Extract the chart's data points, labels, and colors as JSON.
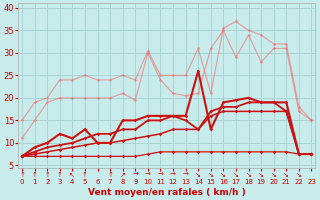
{
  "x": [
    0,
    1,
    2,
    3,
    4,
    5,
    6,
    7,
    8,
    9,
    10,
    11,
    12,
    13,
    14,
    15,
    16,
    17,
    18,
    19,
    20,
    21,
    22,
    23
  ],
  "line_bottom": [
    7,
    7,
    7,
    7,
    7,
    7,
    7,
    7,
    7,
    7,
    7.5,
    8,
    8,
    8,
    8,
    8,
    8,
    8,
    8,
    8,
    8,
    8,
    7.5,
    7.5
  ],
  "line_med1": [
    7,
    7.5,
    8,
    8.5,
    9,
    9.5,
    10,
    10,
    10.5,
    11,
    11.5,
    12,
    13,
    13,
    13,
    16,
    17,
    17,
    17,
    17,
    17,
    17,
    7.5,
    7.5
  ],
  "line_med2": [
    7,
    8,
    9,
    9.5,
    10,
    11,
    12,
    12,
    13,
    13,
    15,
    15,
    16,
    15,
    13,
    17,
    18,
    18,
    19,
    19,
    19,
    17,
    7.5,
    7.5
  ],
  "line_top1": [
    7,
    9,
    10,
    12,
    11,
    13,
    10,
    10,
    15,
    15,
    16,
    16,
    16,
    16,
    26,
    13,
    19,
    19.5,
    20,
    19,
    19,
    19,
    7.5,
    7.5
  ],
  "line_light1": [
    11,
    15,
    19,
    20,
    20,
    20,
    20,
    20,
    21,
    19.5,
    30,
    24,
    21,
    20.5,
    21,
    31,
    35,
    29,
    34,
    28,
    31,
    31,
    17,
    15
  ],
  "line_light2": [
    15,
    19,
    20,
    24,
    24,
    25,
    24,
    24,
    25,
    24,
    30.5,
    25,
    25,
    25,
    31,
    21,
    35.5,
    37,
    35,
    34,
    32,
    32,
    18,
    15
  ],
  "bg_color": "#c8ecec",
  "grid_color": "#aad4d4",
  "colors_dark": [
    "#cc0000",
    "#cc0000",
    "#cc0000",
    "#cc0000"
  ],
  "colors_light": [
    "#f08080",
    "#f08080"
  ],
  "xlabel": "Vent moyen/en rafales ( km/h )",
  "yticks": [
    5,
    10,
    15,
    20,
    25,
    30,
    35,
    40
  ],
  "xlim": [
    -0.3,
    23.3
  ],
  "ylim": [
    4.5,
    41
  ],
  "arrows": [
    "↑",
    "↑",
    "↑",
    "↑",
    "↖",
    "↑",
    "",
    "↑",
    "↗",
    "→",
    "→",
    "→",
    "→",
    "→",
    "↘",
    "↘",
    "↘",
    "↘",
    "↘",
    "↘",
    "↘",
    "↘",
    "↘",
    ""
  ]
}
